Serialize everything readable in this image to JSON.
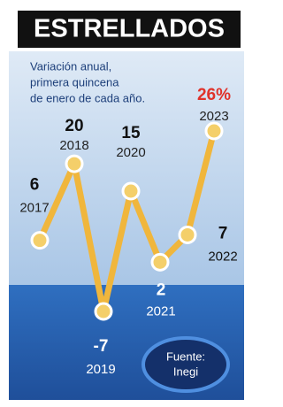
{
  "chart_data": {
    "type": "line",
    "title": "ESTRELLADOS",
    "subtitle": [
      "Variación anual,",
      "primera quincena",
      "de enero de cada año."
    ],
    "categories": [
      "2017",
      "2018",
      "2019",
      "2020",
      "2021",
      "2022",
      "2023"
    ],
    "values": [
      6,
      20,
      -7,
      15,
      2,
      7,
      26
    ],
    "value_labels": [
      "6",
      "20",
      "-7",
      "15",
      "2",
      "7",
      "26%"
    ],
    "color": "#f0b63c",
    "source": [
      "Fuente:",
      "Inegi"
    ]
  }
}
